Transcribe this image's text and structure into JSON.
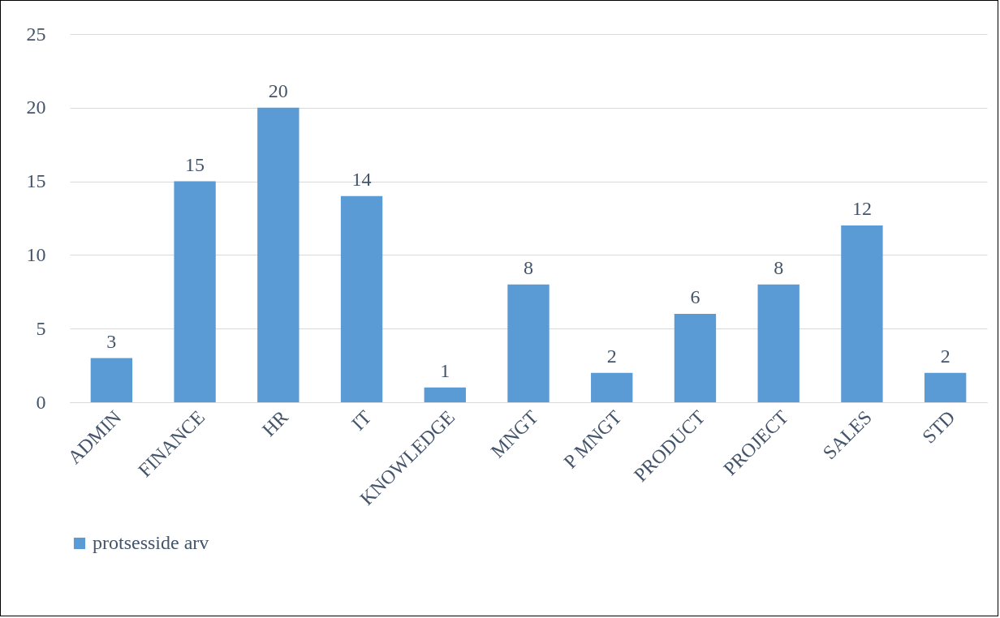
{
  "chart_data": {
    "type": "bar",
    "categories": [
      "ADMIN",
      "FINANCE",
      "HR",
      "IT",
      "KNOWLEDGE",
      "MNGT",
      "P MNGT",
      "PRODUCT",
      "PROJECT",
      "SALES",
      "STD"
    ],
    "series": [
      {
        "name": "protsesside arv",
        "color": "#5b9bd5",
        "values": [
          3,
          15,
          20,
          14,
          1,
          8,
          2,
          6,
          8,
          12,
          2
        ]
      }
    ],
    "ylim": [
      0,
      25
    ],
    "yticks": [
      0,
      5,
      10,
      15,
      20,
      25
    ],
    "grid": "y",
    "legend": "bottom",
    "data_labels": true
  }
}
